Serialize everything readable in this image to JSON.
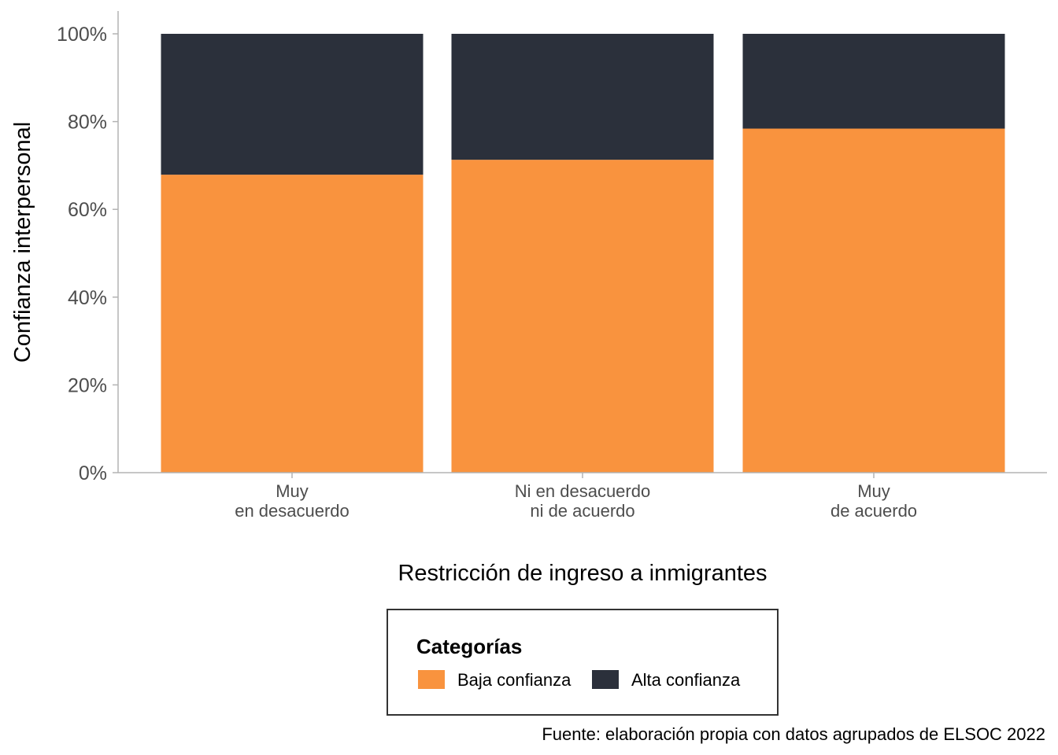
{
  "chart_data": {
    "type": "bar",
    "stacked": true,
    "percent": true,
    "xlabel": "Restricción de ingreso a inmigrantes",
    "ylabel": "Confianza interpersonal",
    "ylim": [
      0,
      100
    ],
    "yticks": [
      "0%",
      "20%",
      "40%",
      "60%",
      "80%",
      "100%"
    ],
    "categories": [
      [
        "Muy",
        "en desacuerdo"
      ],
      [
        "Ni en desacuerdo",
        "ni de acuerdo"
      ],
      [
        "Muy",
        "de acuerdo"
      ]
    ],
    "series": [
      {
        "name": "Baja confianza",
        "color": "#f9933e",
        "values": [
          67.9,
          71.3,
          78.4
        ]
      },
      {
        "name": "Alta confianza",
        "color": "#2b303b",
        "values": [
          32.1,
          28.7,
          21.6
        ]
      }
    ],
    "grid": false,
    "legend": {
      "title": "Categorías",
      "placement": "bottom"
    },
    "caption": "Fuente: elaboración propia con datos agrupados de ELSOC 2022"
  }
}
